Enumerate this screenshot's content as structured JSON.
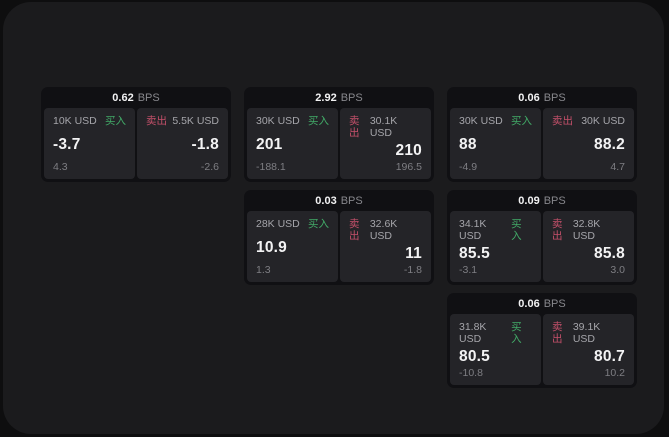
{
  "theme": {
    "bg": "#0e0e0f",
    "surface": "#1b1b1d",
    "card": "#101013",
    "panel": "#242428",
    "green": "#42ab68",
    "red": "#c4506a"
  },
  "labels": {
    "buy": "买入",
    "sell": "卖出",
    "bps_unit": "BPS"
  },
  "cards": [
    {
      "bps": "0.62",
      "buy": {
        "amount": "10K USD",
        "value": "-3.7",
        "sub": "4.3"
      },
      "sell": {
        "amount": "5.5K USD",
        "value": "-1.8",
        "sub": "-2.6"
      }
    },
    {
      "bps": "2.92",
      "buy": {
        "amount": "30K USD",
        "value": "201",
        "sub": "-188.1"
      },
      "sell": {
        "amount": "30.1K USD",
        "value": "210",
        "sub": "196.5"
      }
    },
    {
      "bps": "0.06",
      "buy": {
        "amount": "30K USD",
        "value": "88",
        "sub": "-4.9"
      },
      "sell": {
        "amount": "30K USD",
        "value": "88.2",
        "sub": "4.7"
      }
    },
    {
      "bps": "0.03",
      "buy": {
        "amount": "28K USD",
        "value": "10.9",
        "sub": "1.3"
      },
      "sell": {
        "amount": "32.6K USD",
        "value": "11",
        "sub": "-1.8"
      }
    },
    {
      "bps": "0.09",
      "buy": {
        "amount": "34.1K USD",
        "value": "85.5",
        "sub": "-3.1"
      },
      "sell": {
        "amount": "32.8K USD",
        "value": "85.8",
        "sub": "3.0"
      }
    },
    {
      "bps": "0.06",
      "buy": {
        "amount": "31.8K USD",
        "value": "80.5",
        "sub": "-10.8"
      },
      "sell": {
        "amount": "39.1K USD",
        "value": "80.7",
        "sub": "10.2"
      }
    }
  ]
}
